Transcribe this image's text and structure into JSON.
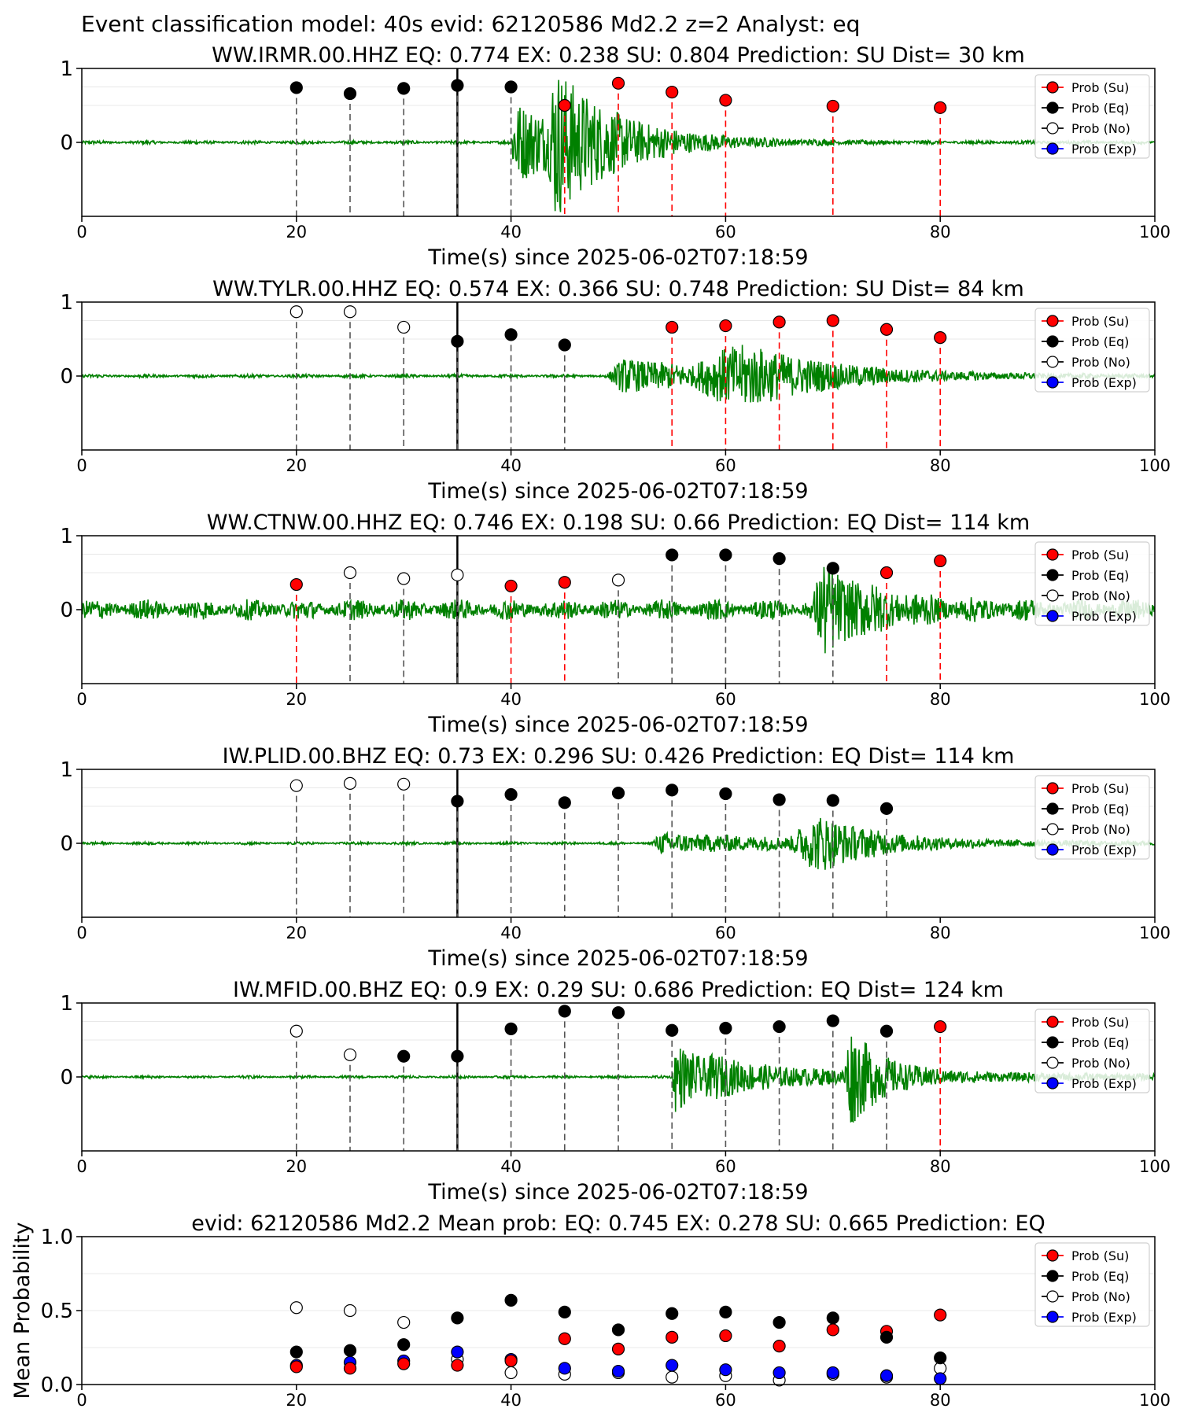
{
  "suptitle": "Event classification model: 40s evid: 62120586 Md2.2 z=2 Analyst: eq",
  "legend": [
    "Prob (Su)",
    "Prob (Eq)",
    "Prob (No)",
    "Prob (Exp)"
  ],
  "colors": {
    "su": "#ff0000",
    "eq": "#000000",
    "no": "#ffffff",
    "exp": "#0000ff",
    "waveform": "#008000",
    "window_su": "#ff0000",
    "window_eq": "#000000"
  },
  "chart_data": [
    {
      "type": "scatter",
      "title": "WW.IRMR.00.HHZ   EQ: 0.774  EX: 0.238  SU: 0.804   Prediction: SU    Dist= 30 km",
      "xlabel": "Time(s) since 2025-06-02T07:18:59",
      "ylabel": "",
      "xlim": [
        0,
        100
      ],
      "ylim": [
        -1,
        1
      ],
      "x_ticks": [
        "0",
        "20",
        "40",
        "60",
        "80",
        "100"
      ],
      "y_ticks": [
        "0",
        "1"
      ],
      "origin_time_s": 35,
      "signal_onset_s": 40,
      "waveform": {
        "noise": 0.015,
        "bursts": [
          {
            "t0": 40,
            "amp": 0.5,
            "decay": 8,
            "rise": 0.3
          },
          {
            "t0": 43.5,
            "amp": 0.7,
            "decay": 5,
            "rise": 0.5
          }
        ]
      },
      "series": [
        {
          "name": "Prob (Eq)",
          "points": [
            [
              20,
              0.74
            ],
            [
              25,
              0.66
            ],
            [
              30,
              0.73
            ],
            [
              35,
              0.77
            ],
            [
              40,
              0.75
            ]
          ]
        },
        {
          "name": "Prob (Su)",
          "points": [
            [
              45,
              0.5
            ],
            [
              50,
              0.8
            ],
            [
              55,
              0.68
            ],
            [
              60,
              0.57
            ],
            [
              70,
              0.49
            ],
            [
              80,
              0.47
            ]
          ]
        },
        {
          "name": "Prob (No)",
          "points": []
        },
        {
          "name": "Prob (Exp)",
          "points": []
        }
      ]
    },
    {
      "type": "scatter",
      "title": "WW.TYLR.00.HHZ   EQ: 0.574  EX: 0.366  SU: 0.748   Prediction: SU    Dist= 84 km",
      "xlabel": "Time(s) since 2025-06-02T07:18:59",
      "ylabel": "",
      "xlim": [
        0,
        100
      ],
      "ylim": [
        -1,
        1
      ],
      "x_ticks": [
        "0",
        "20",
        "40",
        "60",
        "80",
        "100"
      ],
      "y_ticks": [
        "0",
        "1"
      ],
      "origin_time_s": 35,
      "signal_onset_s": 49,
      "waveform": {
        "noise": 0.015,
        "bursts": [
          {
            "t0": 49,
            "amp": 0.22,
            "decay": 12,
            "rise": 1.5
          },
          {
            "t0": 57,
            "amp": 0.55,
            "decay": 8,
            "rise": 5
          }
        ]
      },
      "series": [
        {
          "name": "Prob (No)",
          "points": [
            [
              20,
              0.87
            ],
            [
              25,
              0.87
            ],
            [
              30,
              0.66
            ]
          ]
        },
        {
          "name": "Prob (Eq)",
          "points": [
            [
              35,
              0.47
            ],
            [
              40,
              0.56
            ],
            [
              45,
              0.42
            ]
          ]
        },
        {
          "name": "Prob (Su)",
          "points": [
            [
              55,
              0.66
            ],
            [
              60,
              0.68
            ],
            [
              65,
              0.73
            ],
            [
              70,
              0.75
            ],
            [
              75,
              0.63
            ],
            [
              80,
              0.52
            ]
          ]
        },
        {
          "name": "Prob (Exp)",
          "points": []
        }
      ]
    },
    {
      "type": "scatter",
      "title": "WW.CTNW.00.HHZ   EQ: 0.746  EX: 0.198  SU: 0.66   Prediction: EQ    Dist= 114 km",
      "xlabel": "Time(s) since 2025-06-02T07:18:59",
      "ylabel": "",
      "xlim": [
        0,
        100
      ],
      "ylim": [
        -1,
        1
      ],
      "x_ticks": [
        "0",
        "20",
        "40",
        "60",
        "80",
        "100"
      ],
      "y_ticks": [
        "0",
        "1"
      ],
      "origin_time_s": 35,
      "signal_onset_s": 68,
      "waveform": {
        "noise": 0.09,
        "bursts": [
          {
            "t0": 68,
            "amp": 0.6,
            "decay": 5,
            "rise": 1.2
          }
        ]
      },
      "series": [
        {
          "name": "Prob (Su)",
          "points": [
            [
              20,
              0.34
            ],
            [
              40,
              0.32
            ],
            [
              45,
              0.37
            ],
            [
              75,
              0.5
            ],
            [
              80,
              0.66
            ]
          ]
        },
        {
          "name": "Prob (No)",
          "points": [
            [
              25,
              0.5
            ],
            [
              30,
              0.42
            ],
            [
              35,
              0.47
            ],
            [
              50,
              0.4
            ]
          ]
        },
        {
          "name": "Prob (Eq)",
          "points": [
            [
              55,
              0.74
            ],
            [
              60,
              0.74
            ],
            [
              65,
              0.69
            ],
            [
              70,
              0.56
            ]
          ]
        },
        {
          "name": "Prob (Exp)",
          "points": []
        }
      ]
    },
    {
      "type": "scatter",
      "title": "IW.PLID.00.BHZ   EQ: 0.73  EX: 0.296  SU: 0.426   Prediction: EQ    Dist= 114 km",
      "xlabel": "Time(s) since 2025-06-02T07:18:59",
      "ylabel": "",
      "xlim": [
        0,
        100
      ],
      "ylim": [
        -1,
        1
      ],
      "x_ticks": [
        "0",
        "20",
        "40",
        "60",
        "80",
        "100"
      ],
      "y_ticks": [
        "0",
        "1"
      ],
      "origin_time_s": 35,
      "signal_onset_s": 53,
      "waveform": {
        "noise": 0.012,
        "bursts": [
          {
            "t0": 53,
            "amp": 0.12,
            "decay": 20,
            "rise": 1
          },
          {
            "t0": 66,
            "amp": 0.5,
            "decay": 5,
            "rise": 3
          }
        ]
      },
      "series": [
        {
          "name": "Prob (No)",
          "points": [
            [
              20,
              0.78
            ],
            [
              25,
              0.81
            ],
            [
              30,
              0.8
            ]
          ]
        },
        {
          "name": "Prob (Eq)",
          "points": [
            [
              35,
              0.57
            ],
            [
              40,
              0.66
            ],
            [
              45,
              0.55
            ],
            [
              50,
              0.68
            ],
            [
              55,
              0.72
            ],
            [
              60,
              0.67
            ],
            [
              65,
              0.59
            ],
            [
              70,
              0.58
            ],
            [
              75,
              0.47
            ]
          ]
        },
        {
          "name": "Prob (Su)",
          "points": []
        },
        {
          "name": "Prob (Exp)",
          "points": []
        }
      ]
    },
    {
      "type": "scatter",
      "title": "IW.MFID.00.BHZ   EQ: 0.9  EX: 0.29  SU: 0.686   Prediction: EQ    Dist= 124 km",
      "xlabel": "Time(s) since 2025-06-02T07:18:59",
      "ylabel": "",
      "xlim": [
        0,
        100
      ],
      "ylim": [
        -1,
        1
      ],
      "x_ticks": [
        "0",
        "20",
        "40",
        "60",
        "80",
        "100"
      ],
      "y_ticks": [
        "0",
        "1"
      ],
      "origin_time_s": 35,
      "signal_onset_s": 55,
      "waveform": {
        "noise": 0.012,
        "bursts": [
          {
            "t0": 55,
            "amp": 0.45,
            "decay": 4,
            "rise": 0.3
          },
          {
            "t0": 58,
            "amp": 0.1,
            "decay": 30,
            "rise": 1
          },
          {
            "t0": 71,
            "amp": 0.65,
            "decay": 3,
            "rise": 0.6
          }
        ]
      },
      "series": [
        {
          "name": "Prob (No)",
          "points": [
            [
              20,
              0.62
            ],
            [
              25,
              0.3
            ]
          ]
        },
        {
          "name": "Prob (Eq)",
          "points": [
            [
              30,
              0.28
            ],
            [
              35,
              0.28
            ],
            [
              40,
              0.65
            ],
            [
              45,
              0.89
            ],
            [
              50,
              0.87
            ],
            [
              55,
              0.63
            ],
            [
              60,
              0.66
            ],
            [
              65,
              0.68
            ],
            [
              70,
              0.76
            ],
            [
              75,
              0.62
            ]
          ]
        },
        {
          "name": "Prob (Su)",
          "points": [
            [
              80,
              0.68
            ]
          ]
        },
        {
          "name": "Prob (Exp)",
          "points": []
        }
      ]
    },
    {
      "type": "scatter",
      "title": "evid: 62120586  Md2.2   Mean prob:   EQ: 0.745  EX: 0.278  SU: 0.665   Prediction: EQ",
      "xlabel": "",
      "ylabel": "Mean Probability",
      "xlim": [
        0,
        100
      ],
      "ylim": [
        0,
        1
      ],
      "x_ticks": [
        "0",
        "20",
        "40",
        "60",
        "80",
        "100"
      ],
      "y_ticks": [
        "0.0",
        "0.5",
        "1.0"
      ],
      "series": [
        {
          "name": "Prob (No)",
          "points": [
            [
              20,
              0.52
            ],
            [
              25,
              0.5
            ],
            [
              30,
              0.42
            ],
            [
              35,
              0.17
            ],
            [
              40,
              0.08
            ],
            [
              45,
              0.07
            ],
            [
              50,
              0.08
            ],
            [
              55,
              0.05
            ],
            [
              60,
              0.06
            ],
            [
              65,
              0.03
            ],
            [
              70,
              0.07
            ],
            [
              75,
              0.05
            ],
            [
              80,
              0.11
            ]
          ]
        },
        {
          "name": "Prob (Exp)",
          "points": [
            [
              20,
              0.13
            ],
            [
              25,
              0.15
            ],
            [
              30,
              0.16
            ],
            [
              35,
              0.22
            ],
            [
              40,
              0.17
            ],
            [
              45,
              0.11
            ],
            [
              50,
              0.09
            ],
            [
              55,
              0.13
            ],
            [
              60,
              0.1
            ],
            [
              65,
              0.08
            ],
            [
              70,
              0.08
            ],
            [
              75,
              0.06
            ],
            [
              80,
              0.04
            ]
          ]
        },
        {
          "name": "Prob (Su)",
          "points": [
            [
              20,
              0.12
            ],
            [
              25,
              0.11
            ],
            [
              30,
              0.14
            ],
            [
              35,
              0.13
            ],
            [
              40,
              0.16
            ],
            [
              45,
              0.31
            ],
            [
              50,
              0.24
            ],
            [
              55,
              0.32
            ],
            [
              60,
              0.33
            ],
            [
              65,
              0.26
            ],
            [
              70,
              0.37
            ],
            [
              75,
              0.36
            ],
            [
              80,
              0.47
            ]
          ]
        },
        {
          "name": "Prob (Eq)",
          "points": [
            [
              20,
              0.22
            ],
            [
              25,
              0.23
            ],
            [
              30,
              0.27
            ],
            [
              35,
              0.45
            ],
            [
              40,
              0.57
            ],
            [
              45,
              0.49
            ],
            [
              50,
              0.37
            ],
            [
              55,
              0.48
            ],
            [
              60,
              0.49
            ],
            [
              65,
              0.42
            ],
            [
              70,
              0.45
            ],
            [
              75,
              0.32
            ],
            [
              80,
              0.18
            ]
          ]
        }
      ]
    }
  ]
}
